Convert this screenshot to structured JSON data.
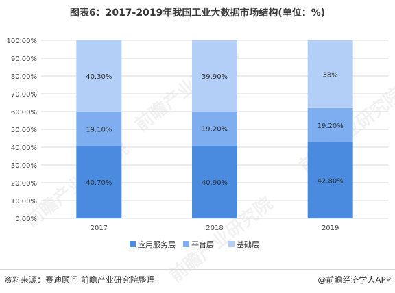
{
  "title": "图表6：2017-2019年我国工业大数据市场结构(单位：%)",
  "footer": {
    "source": "资料来源：赛迪顾问 前瞻产业研究院整理",
    "credit": "@前瞻经济学人APP"
  },
  "watermark": "前瞻产业研究院",
  "colors": {
    "application": "#4a8be0",
    "platform": "#7eaef0",
    "foundation": "#b3cff7",
    "grid": "#d9d9d9",
    "axis_text": "#444444"
  },
  "chart_data": {
    "type": "bar",
    "stacked": true,
    "categories": [
      "2017",
      "2018",
      "2019"
    ],
    "series": [
      {
        "name": "应用服务层",
        "values": [
          40.7,
          40.9,
          42.8
        ],
        "labels": [
          "40.70%",
          "40.90%",
          "42.80%"
        ]
      },
      {
        "name": "平台层",
        "values": [
          19.1,
          19.2,
          19.2
        ],
        "labels": [
          "19.10%",
          "19.20%",
          "19.20%"
        ]
      },
      {
        "name": "基础层",
        "values": [
          40.3,
          39.9,
          38.0
        ],
        "labels": [
          "40.30%",
          "39.90%",
          "38%"
        ]
      }
    ],
    "yticks": [
      "0.00%",
      "10.00%",
      "20.00%",
      "30.00%",
      "40.00%",
      "50.00%",
      "60.00%",
      "70.00%",
      "80.00%",
      "90.00%",
      "100.00%"
    ],
    "ylim": [
      0,
      100
    ],
    "grid": true,
    "legend": "bottom"
  }
}
